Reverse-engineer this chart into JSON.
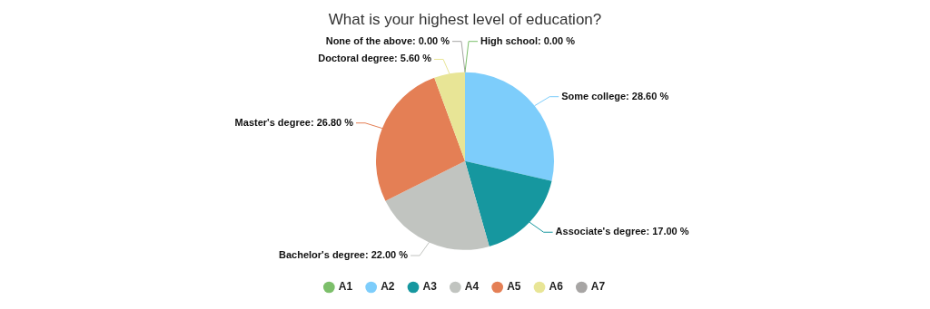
{
  "chart_data": {
    "type": "pie",
    "title": "What is your highest level of education?",
    "categories": [
      "A1",
      "A2",
      "A3",
      "A4",
      "A5",
      "A6",
      "A7"
    ],
    "values": [
      0,
      28.6,
      17,
      22,
      26.8,
      5.6,
      0
    ],
    "colors": [
      "#7cbf6a",
      "#7dcdfb",
      "#16979f",
      "#c1c4c0",
      "#e47f55",
      "#e8e596",
      "#a7a5a4"
    ],
    "value_labels": [
      "High school: 0.00 %",
      "Some college: 28.60 %",
      "Associate's degree: 17.00 %",
      "Bachelor's degree: 22.00 %",
      "Master's degree: 26.80 %",
      "Doctoral degree: 5.60 %",
      "None of the above: 0.00 %"
    ],
    "legend": "bottom"
  }
}
